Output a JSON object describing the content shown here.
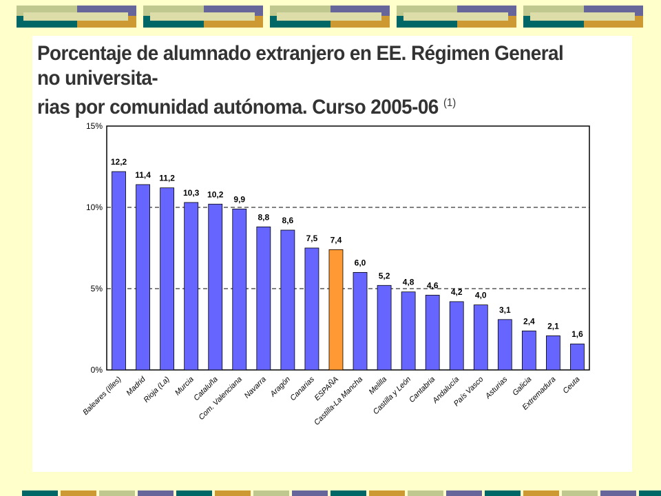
{
  "title_line1": "Porcentaje de alumnado extranjero en EE. Régimen General no universita-",
  "title_line2": "rias por comunidad autónoma. Curso 2005-06",
  "title_note": "(1)",
  "colors": {
    "bar": "#6666ff",
    "highlight": "#ff9933",
    "teal": "#006666",
    "gold": "#cc9933",
    "sage": "#c0c890",
    "slate": "#66669a"
  },
  "chart_data": {
    "type": "bar",
    "title": "Porcentaje de alumnado extranjero en EE. Régimen General no universitarias por comunidad autónoma. Curso 2005-06",
    "categories": [
      "Baleares (Illes)",
      "Madrid",
      "Rioja (La)",
      "Murcia",
      "Cataluña",
      "Com. Valenciana",
      "Navarra",
      "Aragón",
      "Canarias",
      "ESPAÑA",
      "Castilla-La Mancha",
      "Melilla",
      "Castilla y León",
      "Cantabria",
      "Andalucía",
      "País Vasco",
      "Asturias",
      "Galicia",
      "Extremadura",
      "Ceuta"
    ],
    "values": [
      12.2,
      11.4,
      11.2,
      10.3,
      10.2,
      9.9,
      8.8,
      8.6,
      7.5,
      7.4,
      6.0,
      5.2,
      4.8,
      4.6,
      4.2,
      4.0,
      3.1,
      2.4,
      2.1,
      1.6
    ],
    "value_labels": [
      "12,2",
      "11,4",
      "11,2",
      "10,3",
      "10,2",
      "9,9",
      "8,8",
      "8,6",
      "7,5",
      "7,4",
      "6,0",
      "5,2",
      "4,8",
      "4,6",
      "4,2",
      "4,0",
      "3,1",
      "2,4",
      "2,1",
      "1,6"
    ],
    "highlight_category": "ESPAÑA",
    "ylim": [
      0,
      15
    ],
    "yticks": [
      0,
      5,
      10,
      15
    ],
    "ytick_labels": [
      "0%",
      "5%",
      "10%",
      "15%"
    ],
    "reference_lines": [
      5,
      10
    ],
    "xlabel": "",
    "ylabel": ""
  }
}
